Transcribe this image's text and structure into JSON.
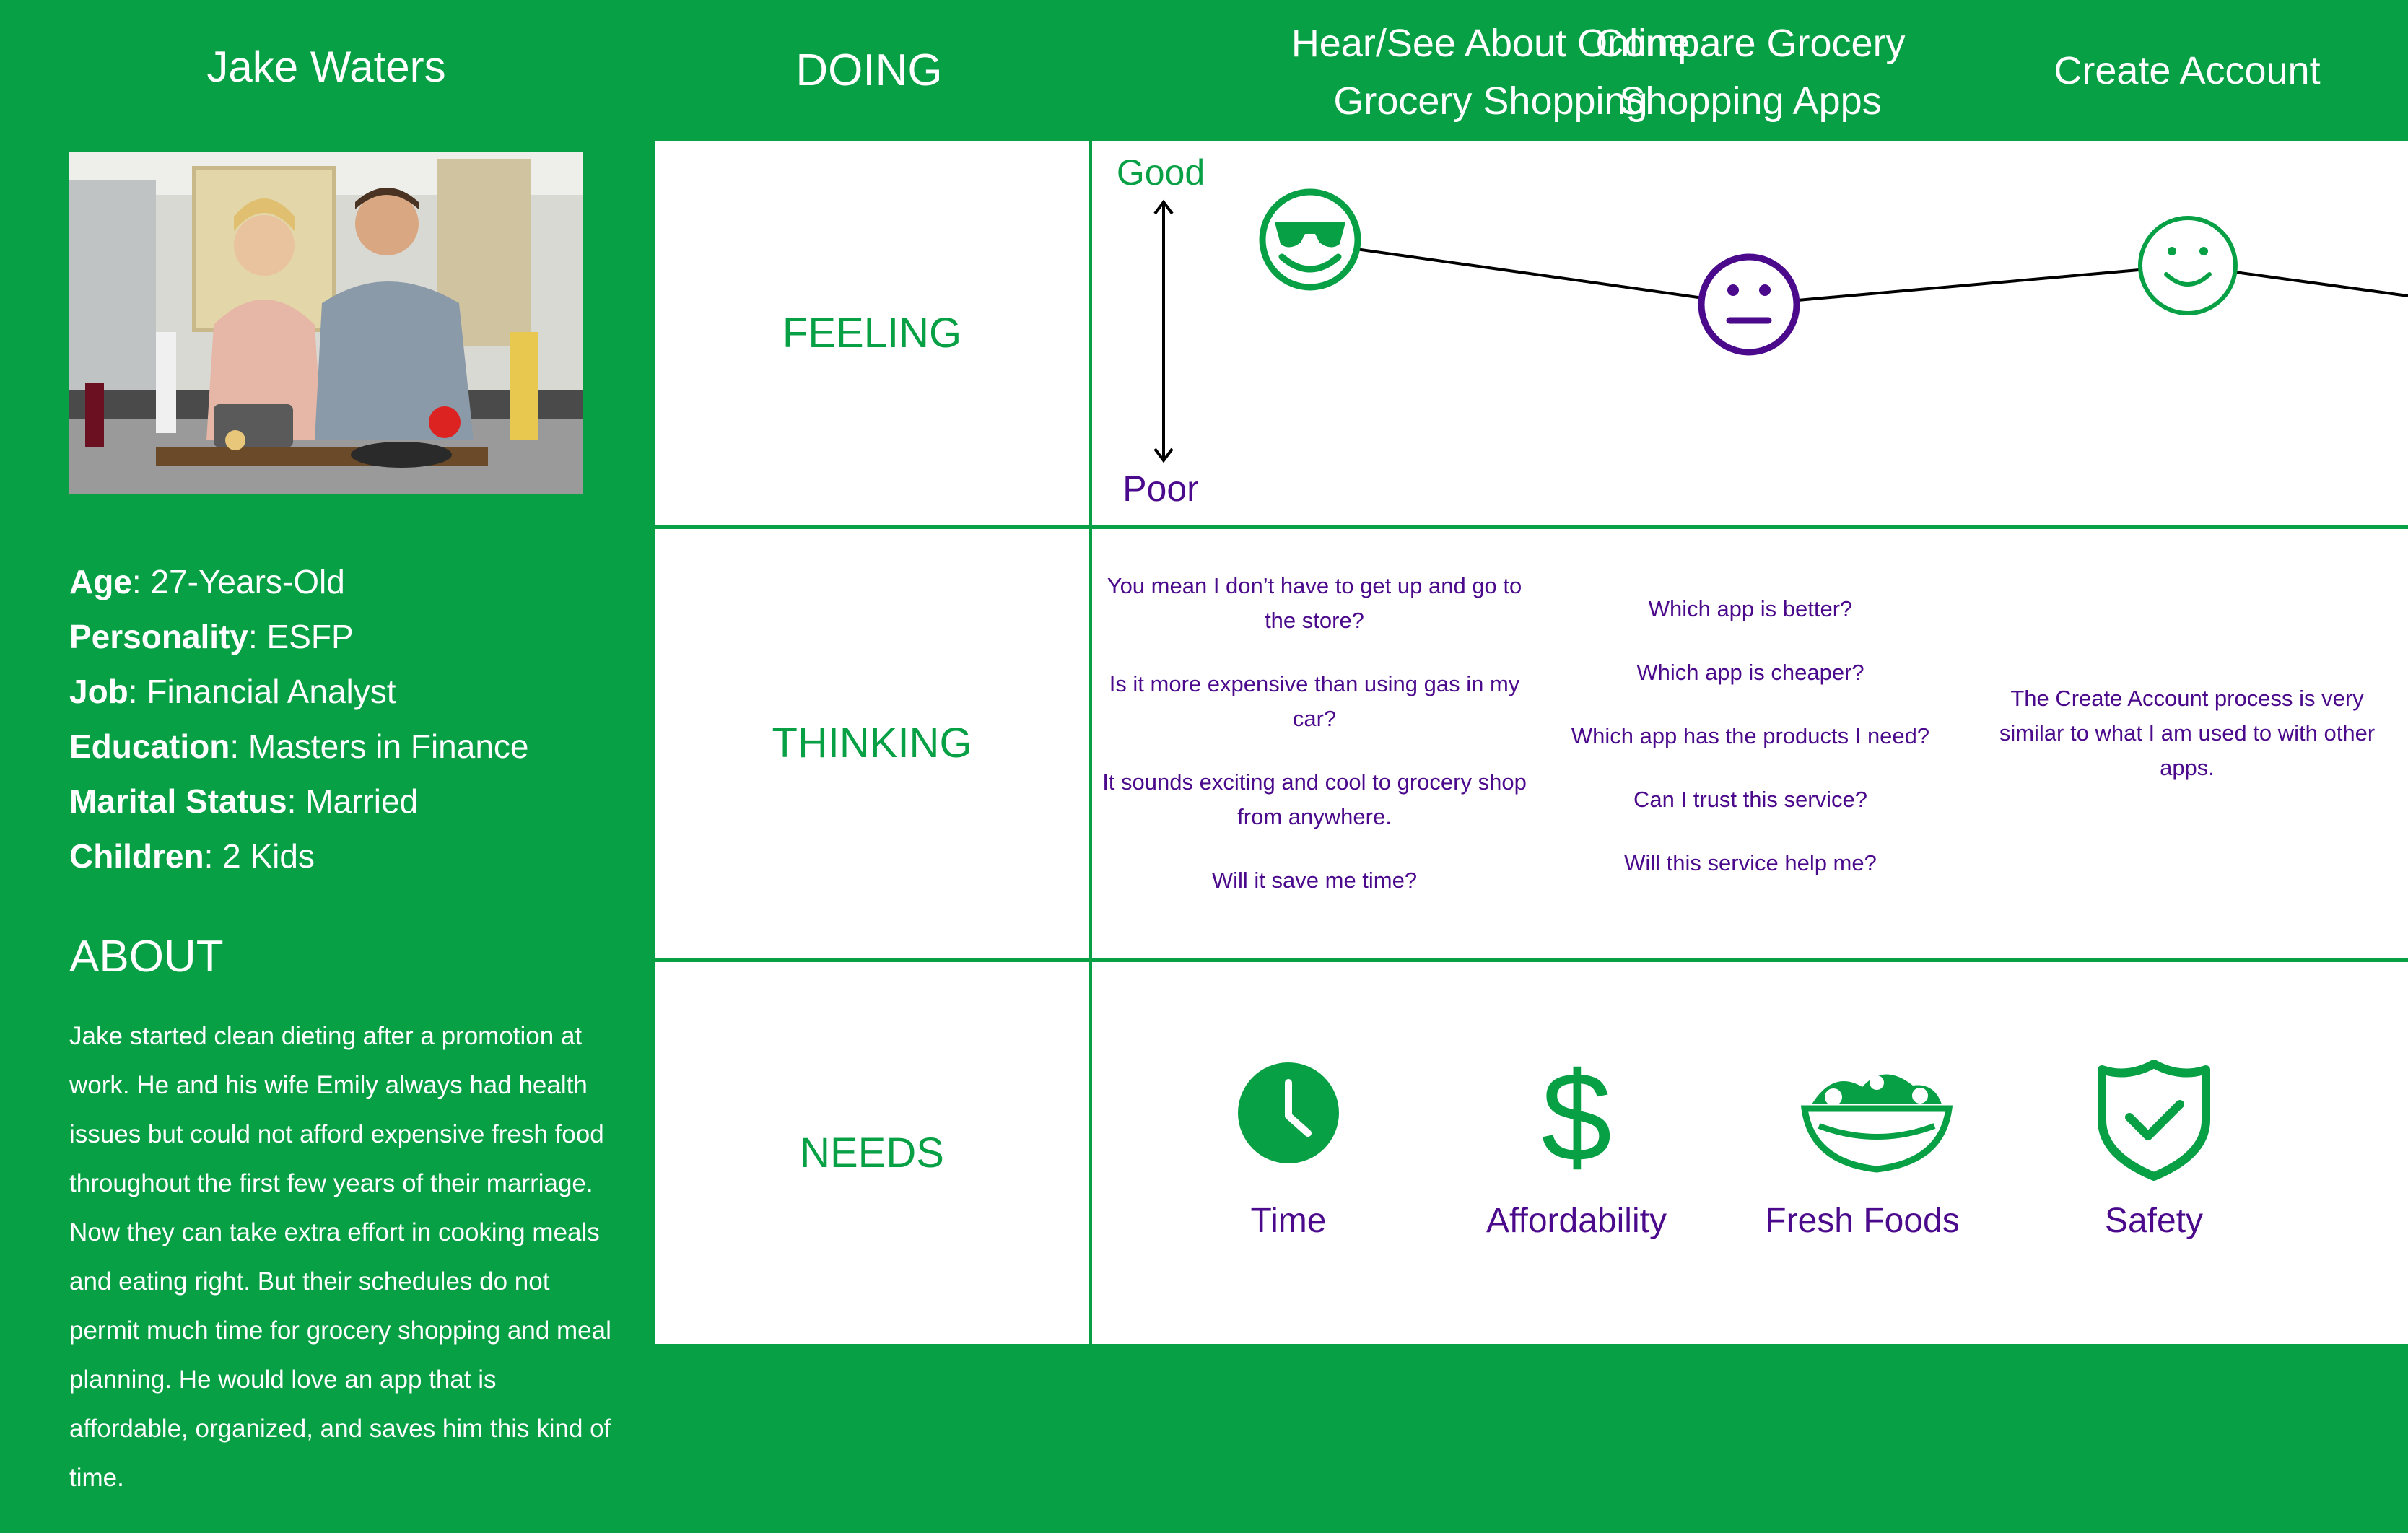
{
  "persona": {
    "name": "Jake Waters",
    "stats": [
      {
        "label": "Age",
        "value": ": 27-Years-Old"
      },
      {
        "label": "Personality",
        "value": ": ESFP"
      },
      {
        "label": "Job",
        "value": ": Financial Analyst"
      },
      {
        "label": "Education",
        "value": ": Masters in Finance"
      },
      {
        "label": "Marital Status",
        "value": ": Married"
      },
      {
        "label": "Children",
        "value": ": 2 Kids"
      }
    ],
    "about_title": "ABOUT",
    "about_text": "Jake started clean dieting after a promotion at work. He and his wife Emily always had health issues but could not afford expensive fresh food throughout the first few years of their marriage. Now they can take extra effort in cooking meals and eating right. But their schedules do not permit much time for grocery shopping and meal planning. He would love an app that is affordable, organized, and saves him this kind of time."
  },
  "header": {
    "doing": "DOING",
    "stages": [
      {
        "line1": "Hear/See About Online",
        "line2": "Grocery Shopping"
      },
      {
        "line1": "Compare Grocery",
        "line2": "Shopping Apps"
      },
      {
        "line1": "Create Account",
        "line2": ""
      }
    ]
  },
  "rows": {
    "feeling": "FEELING",
    "thinking": "THINKING",
    "needs": "NEEDS"
  },
  "feeling": {
    "good_label": "Good",
    "poor_label": "Poor",
    "faces": [
      {
        "icon": "cool-sunglasses-face-icon",
        "color": "#08a045"
      },
      {
        "icon": "neutral-face-icon",
        "color": "#4b0a8c"
      },
      {
        "icon": "smiley-face-icon",
        "color": "#08a045"
      }
    ]
  },
  "thinking": {
    "stage1": [
      "You mean I don’t have to get up and go to the store?",
      "Is it more expensive than using gas in my car?",
      "It sounds exciting and cool to grocery shop from anywhere.",
      "Will it save me time?"
    ],
    "stage2": [
      "Which app is better?",
      "Which app is cheaper?",
      "Which app has the products I need?",
      "Can I trust this service?",
      "Will this service help me?"
    ],
    "stage3": [
      "The Create Account process is very similar to what I am used to with other apps."
    ]
  },
  "needs": [
    {
      "label": "Time",
      "icon": "clock-icon"
    },
    {
      "label": "Affordability",
      "icon": "dollar-icon"
    },
    {
      "label": "Fresh Foods",
      "icon": "salad-bowl-icon"
    },
    {
      "label": "Safety",
      "icon": "shield-check-icon"
    }
  ],
  "colors": {
    "brand_green": "#08a045",
    "purple": "#4b0a8c",
    "white": "#ffffff"
  }
}
